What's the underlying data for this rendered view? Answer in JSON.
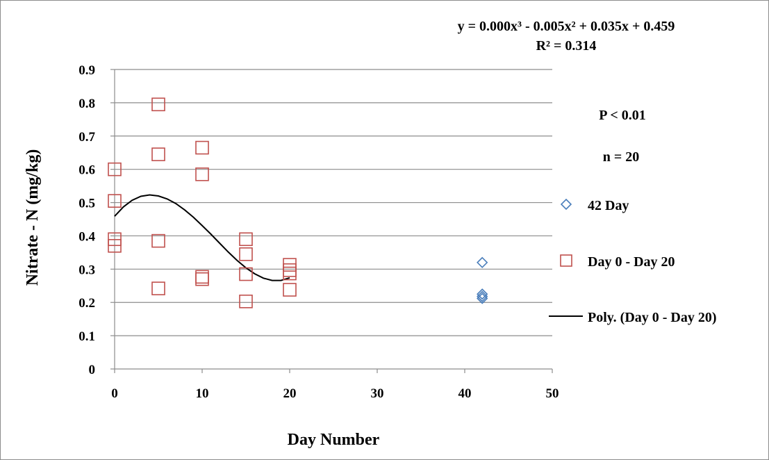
{
  "chart_data": {
    "type": "scatter",
    "title": "",
    "xlabel": "Day Number",
    "ylabel": "Nitrate - N (mg/kg)",
    "xlim": [
      0,
      50
    ],
    "ylim": [
      0,
      0.9
    ],
    "x_ticks": [
      "0",
      "10",
      "20",
      "30",
      "40",
      "50"
    ],
    "y_ticks": [
      "0",
      "0.1",
      "0.2",
      "0.3",
      "0.4",
      "0.5",
      "0.6",
      "0.7",
      "0.8",
      "0.9"
    ],
    "grid": true,
    "legend_position": "right",
    "series": [
      {
        "name": "42 Day",
        "marker": "diamond",
        "color": "#4a7ebb",
        "points": [
          [
            42,
            0.32
          ],
          [
            42,
            0.225
          ],
          [
            42,
            0.218
          ],
          [
            42,
            0.212
          ]
        ]
      },
      {
        "name": "Day 0 - Day 20",
        "marker": "square",
        "color": "#c0504d",
        "points": [
          [
            0,
            0.6
          ],
          [
            0,
            0.505
          ],
          [
            0,
            0.39
          ],
          [
            0,
            0.37
          ],
          [
            5,
            0.795
          ],
          [
            5,
            0.645
          ],
          [
            5,
            0.385
          ],
          [
            5,
            0.242
          ],
          [
            10,
            0.665
          ],
          [
            10,
            0.585
          ],
          [
            10,
            0.277
          ],
          [
            10,
            0.27
          ],
          [
            15,
            0.39
          ],
          [
            15,
            0.345
          ],
          [
            15,
            0.285
          ],
          [
            15,
            0.203
          ],
          [
            20,
            0.313
          ],
          [
            20,
            0.297
          ],
          [
            20,
            0.287
          ],
          [
            20,
            0.238
          ]
        ]
      },
      {
        "name": "Poly. (Day 0 - Day 20)",
        "type": "line",
        "color": "#000000",
        "points": [
          [
            0,
            0.459
          ],
          [
            1,
            0.487
          ],
          [
            2,
            0.507
          ],
          [
            3,
            0.519
          ],
          [
            4,
            0.523
          ],
          [
            5,
            0.52
          ],
          [
            6,
            0.511
          ],
          [
            7,
            0.497
          ],
          [
            8,
            0.478
          ],
          [
            9,
            0.456
          ],
          [
            10,
            0.431
          ],
          [
            11,
            0.405
          ],
          [
            12,
            0.378
          ],
          [
            13,
            0.351
          ],
          [
            14,
            0.326
          ],
          [
            15,
            0.304
          ],
          [
            16,
            0.286
          ],
          [
            17,
            0.273
          ],
          [
            18,
            0.266
          ],
          [
            19,
            0.266
          ],
          [
            20,
            0.274
          ]
        ]
      }
    ],
    "annotations": {
      "equation": "y = 0.000x³ - 0.005x² + 0.035x + 0.459",
      "r_squared": "R² = 0.314",
      "p_value": "P < 0.01",
      "n": "n = 20"
    }
  }
}
